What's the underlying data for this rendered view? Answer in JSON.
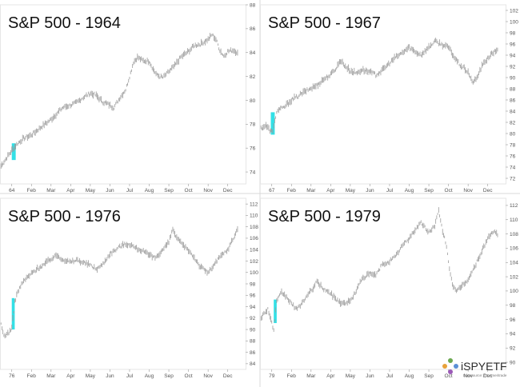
{
  "chart_data": [
    {
      "type": "line",
      "title": "S&P 500 - 1964",
      "x_ticks": [
        "64",
        "Feb",
        "Mar",
        "Apr",
        "May",
        "Jun",
        "Jul",
        "Aug",
        "Sep",
        "Oct",
        "Nov",
        "Dec"
      ],
      "y_ticks": [
        74,
        76,
        78,
        80,
        82,
        84,
        86,
        88
      ],
      "ylim": [
        73,
        88
      ],
      "highlight": {
        "month_range": [
          0.0,
          0.2
        ],
        "y_range": [
          75.0,
          76.4
        ],
        "color": "#33e0e6"
      },
      "series": [
        {
          "color": "#9a9a9a",
          "points": [
            [
              -0.55,
              74.5
            ],
            [
              -0.3,
              75.1
            ],
            [
              0,
              75.8
            ],
            [
              0.3,
              76.4
            ],
            [
              0.6,
              76.8
            ],
            [
              1,
              77.1
            ],
            [
              1.3,
              77.5
            ],
            [
              1.6,
              77.9
            ],
            [
              2,
              78.4
            ],
            [
              2.3,
              78.9
            ],
            [
              2.6,
              79.4
            ],
            [
              3,
              79.6
            ],
            [
              3.3,
              79.8
            ],
            [
              3.6,
              80.2
            ],
            [
              4,
              80.6
            ],
            [
              4.3,
              80.4
            ],
            [
              4.6,
              79.9
            ],
            [
              5,
              79.6
            ],
            [
              5.2,
              79.4
            ],
            [
              5.5,
              80.2
            ],
            [
              5.8,
              80.9
            ],
            [
              6,
              82.0
            ],
            [
              6.2,
              83.2
            ],
            [
              6.4,
              83.6
            ],
            [
              6.7,
              83.3
            ],
            [
              7,
              83.3
            ],
            [
              7.2,
              82.6
            ],
            [
              7.4,
              82.1
            ],
            [
              7.7,
              81.9
            ],
            [
              8,
              82.4
            ],
            [
              8.3,
              82.9
            ],
            [
              8.6,
              83.6
            ],
            [
              9,
              84.1
            ],
            [
              9.3,
              84.6
            ],
            [
              9.6,
              84.7
            ],
            [
              10,
              85.1
            ],
            [
              10.2,
              85.5
            ],
            [
              10.4,
              85.1
            ],
            [
              10.6,
              84.2
            ],
            [
              10.8,
              83.7
            ],
            [
              11,
              84.1
            ],
            [
              11.3,
              84.2
            ],
            [
              11.5,
              84.0
            ]
          ]
        }
      ]
    },
    {
      "type": "line",
      "title": "S&P 500 - 1967",
      "x_ticks": [
        "67",
        "Feb",
        "Mar",
        "Apr",
        "May",
        "Jun",
        "Jul",
        "Aug",
        "Sep",
        "Oct",
        "Nov",
        "Dec"
      ],
      "y_ticks": [
        72,
        74,
        76,
        78,
        80,
        82,
        84,
        86,
        88,
        90,
        92,
        94,
        96,
        98,
        100,
        102
      ],
      "ylim": [
        71,
        103
      ],
      "highlight": {
        "month_range": [
          -0.05,
          0.15
        ],
        "y_range": [
          79.8,
          83.8
        ],
        "color": "#33e0e6"
      },
      "series": [
        {
          "color": "#9a9a9a",
          "points": [
            [
              -0.55,
              81
            ],
            [
              -0.3,
              81.4
            ],
            [
              -0.1,
              80.6
            ],
            [
              0.05,
              80.2
            ],
            [
              0.15,
              82.5
            ],
            [
              0.3,
              84.2
            ],
            [
              0.6,
              84.6
            ],
            [
              1,
              86.0
            ],
            [
              1.3,
              86.6
            ],
            [
              1.6,
              87.3
            ],
            [
              2,
              88.1
            ],
            [
              2.3,
              88.6
            ],
            [
              2.6,
              89.6
            ],
            [
              3,
              90.5
            ],
            [
              3.3,
              91.8
            ],
            [
              3.5,
              93.1
            ],
            [
              3.7,
              92.2
            ],
            [
              4,
              91.2
            ],
            [
              4.3,
              90.8
            ],
            [
              4.6,
              91.4
            ],
            [
              5,
              91.0
            ],
            [
              5.3,
              90.5
            ],
            [
              5.6,
              91.2
            ],
            [
              6,
              92.6
            ],
            [
              6.3,
              93.6
            ],
            [
              6.6,
              94.3
            ],
            [
              7,
              95.4
            ],
            [
              7.3,
              94.6
            ],
            [
              7.6,
              94.1
            ],
            [
              8,
              95.4
            ],
            [
              8.3,
              96.5
            ],
            [
              8.6,
              96.0
            ],
            [
              9,
              95.4
            ],
            [
              9.3,
              93.6
            ],
            [
              9.6,
              92.2
            ],
            [
              10,
              91.0
            ],
            [
              10.2,
              89.2
            ],
            [
              10.4,
              89.6
            ],
            [
              10.7,
              92.0
            ],
            [
              11,
              93.5
            ],
            [
              11.3,
              94.5
            ],
            [
              11.5,
              95.0
            ]
          ]
        }
      ]
    },
    {
      "type": "line",
      "title": "S&P 500 - 1976",
      "x_ticks": [
        "76",
        "Feb",
        "Mar",
        "Apr",
        "May",
        "Jun",
        "Jul",
        "Aug",
        "Sep",
        "Oct",
        "Nov",
        "Dec"
      ],
      "y_ticks": [
        84,
        86,
        88,
        90,
        92,
        94,
        96,
        98,
        100,
        102,
        104,
        106,
        108,
        110,
        112
      ],
      "ylim": [
        83,
        113
      ],
      "highlight": {
        "month_range": [
          0.0,
          0.15
        ],
        "y_range": [
          90.0,
          95.5
        ],
        "color": "#33e0e6"
      },
      "series": [
        {
          "color": "#9a9a9a",
          "points": [
            [
              -0.55,
              90.8
            ],
            [
              -0.4,
              88.9
            ],
            [
              -0.2,
              89.3
            ],
            [
              0,
              90.2
            ],
            [
              0.15,
              94.8
            ],
            [
              0.3,
              96.6
            ],
            [
              0.6,
              98.5
            ],
            [
              1,
              99.8
            ],
            [
              1.3,
              100.7
            ],
            [
              1.6,
              101.3
            ],
            [
              2,
              102.4
            ],
            [
              2.3,
              103.0
            ],
            [
              2.6,
              102.3
            ],
            [
              3,
              101.8
            ],
            [
              3.3,
              102.2
            ],
            [
              3.6,
              101.8
            ],
            [
              4,
              101.3
            ],
            [
              4.3,
              100.6
            ],
            [
              4.6,
              101.3
            ],
            [
              5,
              103.3
            ],
            [
              5.3,
              104.0
            ],
            [
              5.6,
              104.8
            ],
            [
              6,
              105.0
            ],
            [
              6.3,
              104.3
            ],
            [
              6.6,
              103.9
            ],
            [
              7,
              103.0
            ],
            [
              7.3,
              102.6
            ],
            [
              7.6,
              103.6
            ],
            [
              8,
              105.3
            ],
            [
              8.2,
              107.6
            ],
            [
              8.4,
              106.0
            ],
            [
              8.7,
              104.8
            ],
            [
              9,
              103.9
            ],
            [
              9.3,
              102.6
            ],
            [
              9.6,
              101.0
            ],
            [
              10,
              100.0
            ],
            [
              10.3,
              101.3
            ],
            [
              10.6,
              102.7
            ],
            [
              11,
              104.0
            ],
            [
              11.3,
              106.1
            ],
            [
              11.5,
              107.6
            ]
          ]
        }
      ]
    },
    {
      "type": "line",
      "title": "S&P 500 - 1979",
      "x_ticks": [
        "79",
        "Feb",
        "Mar",
        "Apr",
        "May",
        "Jun",
        "Jul",
        "Aug",
        "Sep",
        "Oct",
        "Nov",
        "Dec"
      ],
      "y_ticks": [
        90,
        92,
        94,
        96,
        98,
        100,
        102,
        104,
        106,
        108,
        110,
        112
      ],
      "ylim": [
        89,
        113
      ],
      "highlight": {
        "month_range": [
          0.1,
          0.25
        ],
        "y_range": [
          95.5,
          98.8
        ],
        "color": "#33e0e6"
      },
      "series": [
        {
          "color": "#9a9a9a",
          "points": [
            [
              -0.55,
              96.3
            ],
            [
              -0.2,
              97.5
            ],
            [
              0,
              95.5
            ],
            [
              0.1,
              94.5
            ],
            [
              0.25,
              98.5
            ],
            [
              0.5,
              99.8
            ],
            [
              0.8,
              99.0
            ],
            [
              1,
              98.2
            ],
            [
              1.3,
              97.4
            ],
            [
              1.6,
              98.6
            ],
            [
              2,
              100.0
            ],
            [
              2.3,
              101.3
            ],
            [
              2.6,
              100.4
            ],
            [
              3,
              99.6
            ],
            [
              3.3,
              98.8
            ],
            [
              3.6,
              98.2
            ],
            [
              4,
              98.6
            ],
            [
              4.3,
              100.0
            ],
            [
              4.6,
              101.8
            ],
            [
              5,
              102.4
            ],
            [
              5.3,
              102.2
            ],
            [
              5.6,
              103.6
            ],
            [
              6,
              104.2
            ],
            [
              6.3,
              104.8
            ],
            [
              6.6,
              106.2
            ],
            [
              7,
              107.4
            ],
            [
              7.3,
              108.6
            ],
            [
              7.6,
              109.6
            ],
            [
              8,
              108.2
            ],
            [
              8.3,
              109.2
            ],
            [
              8.5,
              111.2
            ],
            [
              8.7,
              108.4
            ],
            [
              8.9,
              106.4
            ],
            [
              9,
              104.0
            ],
            [
              9.2,
              101.0
            ],
            [
              9.4,
              99.8
            ],
            [
              9.7,
              100.8
            ],
            [
              10,
              101.6
            ],
            [
              10.3,
              103.2
            ],
            [
              10.6,
              105.0
            ],
            [
              11,
              107.4
            ],
            [
              11.3,
              108.4
            ],
            [
              11.5,
              107.8
            ]
          ]
        }
      ]
    }
  ],
  "logo": {
    "brand_prefix": "i",
    "brand_main": "SPYETF",
    "tagline": "Datasource: TD Ameritrade",
    "colors": [
      "#e8a23a",
      "#6aa84f",
      "#9c5ab8",
      "#5b8fd6"
    ]
  }
}
